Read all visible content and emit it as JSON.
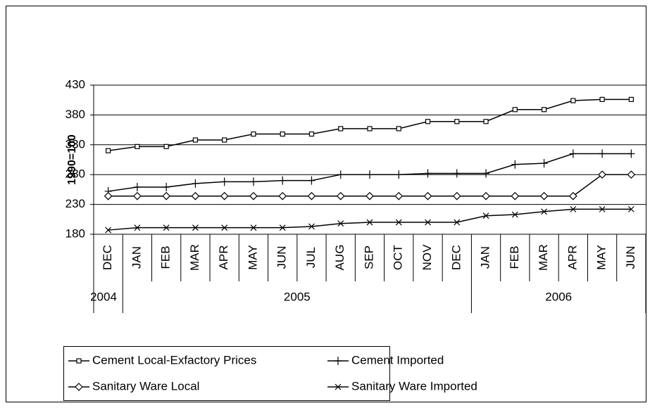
{
  "chart_data": {
    "type": "line",
    "y_label": "1990=100",
    "categories": [
      "DEC",
      "JAN",
      "FEB",
      "MAR",
      "APR",
      "MAY",
      "JUN",
      "JUL",
      "AUG",
      "SEP",
      "OCT",
      "NOV",
      "DEC",
      "JAN",
      "FEB",
      "MAR",
      "APR",
      "MAY",
      "JUN"
    ],
    "category_groups": [
      {
        "label": "2004",
        "count": 1
      },
      {
        "label": "2005",
        "count": 12
      },
      {
        "label": "2006",
        "count": 6
      }
    ],
    "ylim": [
      180,
      430
    ],
    "yticks": [
      180,
      230,
      280,
      330,
      380,
      430
    ],
    "grid": true,
    "legend": "bottom",
    "series": [
      {
        "name": "Cement Local-Exfactory Prices",
        "color": "#000000",
        "marker": "square",
        "values": [
          320,
          327,
          327,
          338,
          338,
          348,
          348,
          348,
          357,
          357,
          357,
          369,
          369,
          369,
          389,
          389,
          404,
          406,
          406
        ]
      },
      {
        "name": "Cement Imported",
        "color": "#000000",
        "marker": "plus",
        "values": [
          252,
          259,
          259,
          265,
          268,
          268,
          270,
          270,
          280,
          280,
          280,
          282,
          282,
          282,
          297,
          299,
          315,
          315,
          315
        ]
      },
      {
        "name": "Sanitary Ware Local",
        "color": "#000000",
        "marker": "diamond",
        "values": [
          244,
          244,
          244,
          244,
          244,
          244,
          244,
          244,
          244,
          244,
          244,
          244,
          244,
          244,
          244,
          244,
          244,
          280,
          280
        ]
      },
      {
        "name": "Sanitary Ware Imported",
        "color": "#000000",
        "marker": "x",
        "values": [
          187,
          191,
          191,
          191,
          191,
          191,
          191,
          193,
          198,
          200,
          200,
          200,
          200,
          211,
          213,
          218,
          222,
          222,
          222
        ]
      }
    ]
  }
}
